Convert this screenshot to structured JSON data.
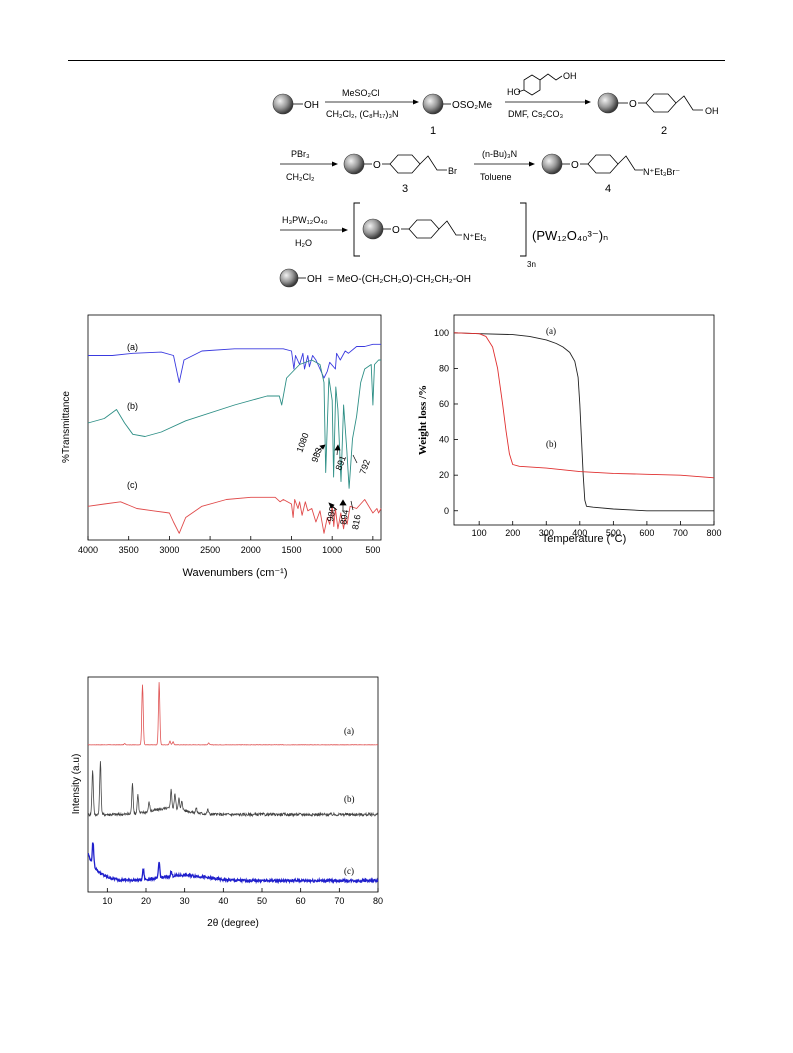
{
  "scheme": {
    "step1_reagent_top": "MeSO₂Cl",
    "step1_reagent_bottom": "CH₂Cl₂, (C₈H₁₇)₃N",
    "group_oh": "OH",
    "group_oso2me": "OSO₂Me",
    "label_1": "1",
    "step2_reagent_top_ho": "HO",
    "step2_reagent_top_oh": "OH",
    "step2_reagent_bottom": "DMF, Cs₂CO₃",
    "label_2": "2",
    "o_atom": "O",
    "step3_reagent_top": "PBr₃",
    "step3_reagent_bottom": "CH₂Cl₂",
    "group_br": "Br",
    "label_3": "3",
    "step4_reagent_top": "(n-Bu)₃N",
    "step4_reagent_bottom": "Toluene",
    "group_net3br": "N⁺Et₃Br⁻",
    "label_4": "4",
    "step5_reagent_top": "H₃PW₁₂O₄₀",
    "step5_reagent_bottom": "H₂O",
    "group_net3": "N⁺Et₃",
    "subscript_3n": "3n",
    "counter_ion": "(PW₁₂O₄₀³⁻)ₙ",
    "legend_oh": "OH",
    "legend_text": "= MeO-(CH₂CH₂O)-CH₂CH₂-OH"
  },
  "ir_chart": {
    "chart_data": {
      "type": "line",
      "xlabel": "Wavenumbers (cm⁻¹)",
      "ylabel": "%Transmittance",
      "xlim": [
        4000,
        400
      ],
      "x_ticks": [
        "4000",
        "3500",
        "3000",
        "2500",
        "2000",
        "1500",
        "1000",
        "500"
      ],
      "series": [
        {
          "name": "(a)",
          "color": "#3a3adf",
          "x": [
            4000,
            3700,
            3450,
            3100,
            2950,
            2880,
            2820,
            2600,
            2200,
            1900,
            1750,
            1600,
            1500,
            1470,
            1450,
            1400,
            1360,
            1340,
            1300,
            1280,
            1240,
            1200,
            1150,
            1100,
            1060,
            1030,
            960,
            945,
            900,
            840,
            800,
            700,
            600,
            500,
            400
          ],
          "y": [
            82,
            82,
            83,
            83.5,
            82,
            70,
            80,
            84,
            85,
            85,
            85,
            85,
            84,
            76,
            82,
            78,
            83,
            76,
            82,
            77,
            82,
            80,
            76,
            72,
            75,
            79,
            76,
            83,
            80,
            84,
            83,
            86,
            86,
            87,
            87
          ]
        },
        {
          "name": "(b)",
          "color": "#2e8f86",
          "x": [
            4000,
            3800,
            3650,
            3550,
            3450,
            3300,
            3100,
            2800,
            2200,
            1800,
            1650,
            1620,
            1560,
            1400,
            1250,
            1150,
            1100,
            1080,
            1040,
            1000,
            983,
            955,
            930,
            891,
            860,
            820,
            792,
            750,
            700,
            650,
            600,
            520,
            500,
            480,
            430,
            400
          ],
          "y": [
            52,
            54,
            58,
            52,
            47,
            46,
            48,
            53,
            60,
            64,
            64,
            60,
            72,
            78,
            80,
            78,
            70,
            30,
            72,
            62,
            28,
            68,
            58,
            26,
            60,
            40,
            23,
            45,
            55,
            70,
            76,
            78,
            60,
            78,
            80,
            80
          ]
        },
        {
          "name": "(c)",
          "color": "#e04a4a",
          "x": [
            4000,
            3800,
            3600,
            3400,
            3200,
            3000,
            2950,
            2880,
            2800,
            2600,
            2300,
            2000,
            1700,
            1640,
            1600,
            1500,
            1480,
            1460,
            1420,
            1400,
            1370,
            1330,
            1300,
            1250,
            1200,
            1150,
            1100,
            1060,
            1030,
            1000,
            980,
            960,
            930,
            894,
            860,
            840,
            816,
            780,
            700,
            600,
            500,
            450,
            430,
            400
          ],
          "y": [
            15,
            16,
            17,
            14,
            13,
            12,
            8,
            3,
            10,
            15,
            18,
            19,
            19,
            17,
            18,
            16,
            10,
            18,
            14,
            17,
            11,
            17,
            13,
            14,
            8,
            13,
            3,
            10,
            7,
            15,
            6,
            14,
            5,
            12,
            5,
            10,
            7,
            15,
            14,
            18,
            12,
            14,
            12,
            14
          ]
        }
      ],
      "annotations": [
        "1080",
        "983",
        "891",
        "792",
        "980",
        "894",
        "816"
      ],
      "series_labels": [
        "(a)",
        "(b)",
        "(c)"
      ]
    }
  },
  "tga_chart": {
    "chart_data": {
      "type": "line",
      "xlabel": "Temperature (°C)",
      "ylabel": "Weight loss /%",
      "xlim": [
        25,
        800
      ],
      "ylim": [
        -8,
        110
      ],
      "x_ticks": [
        "100",
        "200",
        "300",
        "400",
        "500",
        "600",
        "700",
        "800"
      ],
      "y_ticks": [
        "0",
        "20",
        "40",
        "60",
        "80",
        "100"
      ],
      "series": [
        {
          "name": "(a)",
          "color": "#222222",
          "x": [
            25,
            100,
            200,
            250,
            300,
            330,
            350,
            370,
            385,
            395,
            400,
            405,
            410,
            415,
            420,
            440,
            500,
            600,
            700,
            800
          ],
          "y": [
            100,
            99.5,
            99,
            98,
            96,
            94,
            92,
            89,
            84,
            75,
            60,
            40,
            20,
            6,
            2.5,
            2,
            1,
            0,
            0,
            0
          ]
        },
        {
          "name": "(b)",
          "color": "#e03030",
          "x": [
            25,
            100,
            120,
            140,
            155,
            170,
            180,
            190,
            200,
            220,
            300,
            400,
            500,
            600,
            700,
            800
          ],
          "y": [
            100,
            99.5,
            98,
            92,
            80,
            60,
            45,
            32,
            26,
            25,
            24,
            22,
            21,
            20.5,
            20,
            18.5
          ]
        }
      ],
      "series_labels": [
        "(a)",
        "(b)"
      ]
    }
  },
  "xrd_chart": {
    "chart_data": {
      "type": "line",
      "xlabel": "2θ (degree)",
      "ylabel": "Intensity (a.u)",
      "xlim": [
        5,
        80
      ],
      "x_ticks": [
        "10",
        "20",
        "30",
        "40",
        "50",
        "60",
        "70",
        "80"
      ],
      "series_labels": [
        "(a)",
        "(b)",
        "(c)"
      ],
      "series": [
        {
          "name": "(a)",
          "color": "#e05555",
          "peaks": [
            [
              19.1,
              100
            ],
            [
              23.4,
              104
            ],
            [
              26.2,
              6
            ],
            [
              27.0,
              5
            ],
            [
              36.2,
              3
            ],
            [
              14.5,
              2
            ]
          ]
        },
        {
          "name": "(b)",
          "color": "#444444",
          "peaks": [
            [
              6.2,
              60
            ],
            [
              8.2,
              70
            ],
            [
              16.5,
              40
            ],
            [
              17.9,
              25
            ],
            [
              20.8,
              12
            ],
            [
              26.5,
              25
            ],
            [
              27.5,
              20
            ],
            [
              28.5,
              15
            ],
            [
              29.3,
              12
            ],
            [
              33.0,
              6
            ],
            [
              36.0,
              6
            ]
          ]
        },
        {
          "name": "(c)",
          "color": "#2020cc",
          "peaks": [
            [
              6.3,
              25
            ],
            [
              19.3,
              12
            ],
            [
              23.4,
              18
            ],
            [
              26.5,
              5
            ]
          ]
        }
      ]
    }
  }
}
